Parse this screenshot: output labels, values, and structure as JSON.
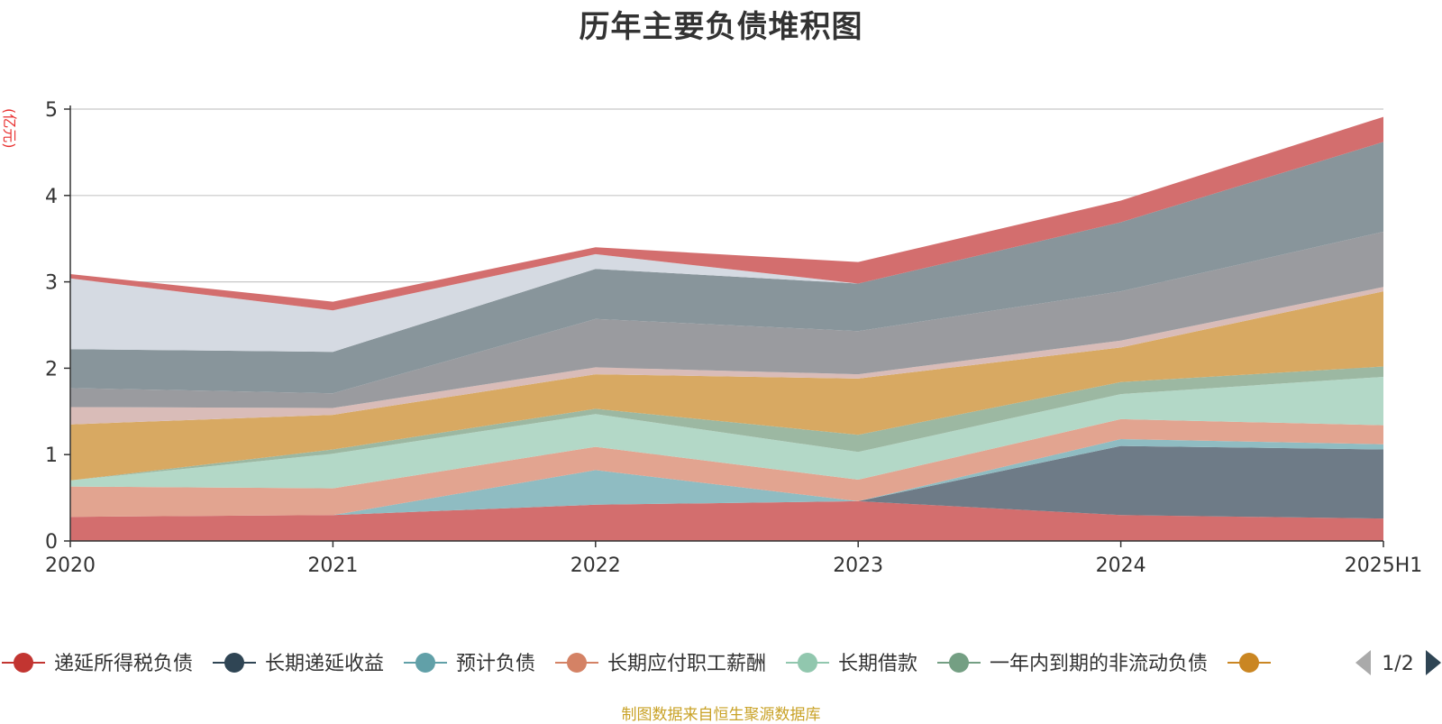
{
  "chart_data": {
    "type": "area",
    "stacked": true,
    "title": "历年主要负债堆积图",
    "unit_label": "(亿元)",
    "x": [
      "2020",
      "2021",
      "2022",
      "2023",
      "2024",
      "2025H1"
    ],
    "ylim": [
      0,
      5
    ],
    "yticks": [
      0,
      1,
      2,
      3,
      4,
      5
    ],
    "grid": true,
    "legend_position": "bottom",
    "legend_page": "1/2",
    "series": [
      {
        "name": "递延所得税负债",
        "values": [
          0.28,
          0.3,
          0.42,
          0.46,
          0.3,
          0.26
        ],
        "color": "#d36e6e",
        "legend_color": "#c23531"
      },
      {
        "name": "长期递延收益",
        "values": [
          0,
          0,
          0,
          0,
          0.8,
          0.8
        ],
        "color": "#6e7b87",
        "legend_color": "#2f4554"
      },
      {
        "name": "预计负债",
        "values": [
          0,
          0,
          0.4,
          0,
          0.08,
          0.06
        ],
        "color": "#8fbcc2",
        "legend_color": "#61a0a8"
      },
      {
        "name": "长期应付职工薪酬",
        "values": [
          0.35,
          0.31,
          0.27,
          0.25,
          0.23,
          0.22
        ],
        "color": "#e2a490",
        "legend_color": "#d48265"
      },
      {
        "name": "长期借款",
        "values": [
          0.07,
          0.4,
          0.38,
          0.32,
          0.29,
          0.56
        ],
        "color": "#b3d8c7",
        "legend_color": "#91c7ae"
      },
      {
        "name": "一年内到期的非流动负债",
        "values": [
          0,
          0.05,
          0.06,
          0.2,
          0.14,
          0.12
        ],
        "color": "#9cb8a2",
        "legend_color": "#749f83"
      },
      {
        "name": "",
        "values": [
          0.65,
          0.4,
          0.4,
          0.65,
          0.4,
          0.87
        ],
        "color": "#d8a962",
        "legend_color": "#ca8622"
      },
      {
        "name": "",
        "values": [
          0.2,
          0.08,
          0.08,
          0.05,
          0.08,
          0.05
        ],
        "color": "#d9bcb8",
        "legend_color": "#bda29a"
      },
      {
        "name": "",
        "values": [
          0.22,
          0.17,
          0.56,
          0.5,
          0.57,
          0.64
        ],
        "color": "#9a9b9f",
        "legend_color": "#6e7074"
      },
      {
        "name": "",
        "values": [
          0.45,
          0.48,
          0.58,
          0.55,
          0.8,
          1.04
        ],
        "color": "#88959b",
        "legend_color": "#546570"
      },
      {
        "name": "",
        "values": [
          0.82,
          0.48,
          0.17,
          0,
          0,
          0
        ],
        "color": "#d5dae2",
        "legend_color": "#c4ccd3"
      },
      {
        "name": "",
        "values": [
          0.05,
          0.1,
          0.08,
          0.25,
          0.25,
          0.29
        ],
        "color": "#d36e6e",
        "legend_color": "#c23531"
      }
    ],
    "source_note": "制图数据来自恒生聚源数据库"
  }
}
